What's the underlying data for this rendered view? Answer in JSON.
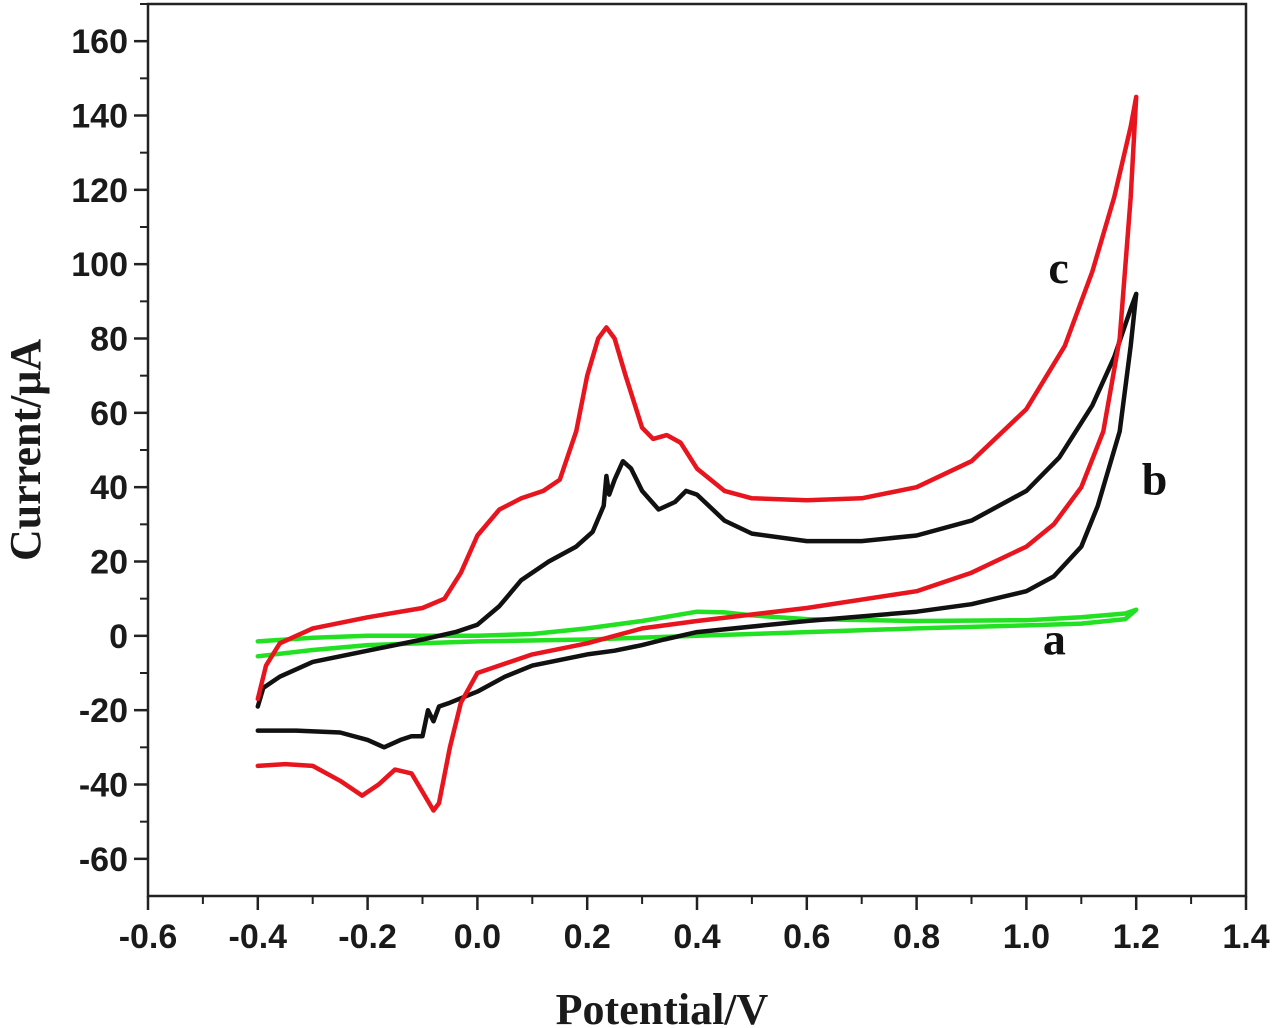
{
  "chart_data": {
    "type": "line",
    "xlabel": "Potential/V",
    "ylabel": "Current/μA",
    "xlim": [
      -0.6,
      1.4
    ],
    "ylim": [
      -70,
      170
    ],
    "xticks": [
      -0.6,
      -0.4,
      -0.2,
      0.0,
      0.2,
      0.4,
      0.6,
      0.8,
      1.0,
      1.2,
      1.4
    ],
    "xtick_labels": [
      "-0.6",
      "-0.4",
      "-0.2",
      "0.0",
      "0.2",
      "0.4",
      "0.6",
      "0.8",
      "1.0",
      "1.2",
      "1.4"
    ],
    "yticks": [
      -60,
      -40,
      -20,
      0,
      20,
      40,
      60,
      80,
      100,
      120,
      140,
      160
    ],
    "ytick_labels": [
      "-60",
      "-40",
      "-20",
      "0",
      "20",
      "40",
      "60",
      "80",
      "100",
      "120",
      "140",
      "160"
    ],
    "grid": false,
    "legend": "none",
    "series": [
      {
        "label": "a",
        "color": "#22e022",
        "label_pos": [
          1.03,
          -5
        ],
        "points": [
          [
            -0.4,
            -1.5
          ],
          [
            -0.3,
            -0.5
          ],
          [
            -0.2,
            0
          ],
          [
            -0.1,
            0
          ],
          [
            0.0,
            0
          ],
          [
            0.1,
            0.5
          ],
          [
            0.2,
            2
          ],
          [
            0.3,
            4
          ],
          [
            0.4,
            6.5
          ],
          [
            0.45,
            6.3
          ],
          [
            0.5,
            5.5
          ],
          [
            0.6,
            4.5
          ],
          [
            0.8,
            4
          ],
          [
            1.0,
            4.2
          ],
          [
            1.1,
            5
          ],
          [
            1.18,
            6
          ],
          [
            1.2,
            7
          ],
          [
            1.18,
            4.5
          ],
          [
            1.1,
            3.3
          ],
          [
            1.0,
            2.8
          ],
          [
            0.8,
            2
          ],
          [
            0.6,
            1
          ],
          [
            0.4,
            0
          ],
          [
            0.2,
            -1
          ],
          [
            0.0,
            -1.5
          ],
          [
            -0.2,
            -2.5
          ],
          [
            -0.3,
            -3.8
          ],
          [
            -0.4,
            -5.5
          ]
        ]
      },
      {
        "label": "b",
        "color": "#111111",
        "label_pos": [
          1.21,
          38
        ],
        "points": [
          [
            -0.4,
            -19
          ],
          [
            -0.39,
            -14
          ],
          [
            -0.36,
            -11
          ],
          [
            -0.3,
            -7
          ],
          [
            -0.2,
            -4
          ],
          [
            -0.1,
            -1
          ],
          [
            -0.04,
            1
          ],
          [
            0.0,
            3
          ],
          [
            0.04,
            8
          ],
          [
            0.08,
            15
          ],
          [
            0.13,
            20
          ],
          [
            0.18,
            24
          ],
          [
            0.21,
            28
          ],
          [
            0.23,
            35
          ],
          [
            0.235,
            43
          ],
          [
            0.24,
            38
          ],
          [
            0.25,
            42
          ],
          [
            0.265,
            47
          ],
          [
            0.28,
            45
          ],
          [
            0.3,
            39
          ],
          [
            0.33,
            34
          ],
          [
            0.36,
            36
          ],
          [
            0.38,
            39
          ],
          [
            0.4,
            38
          ],
          [
            0.45,
            31
          ],
          [
            0.5,
            27.5
          ],
          [
            0.6,
            25.5
          ],
          [
            0.7,
            25.5
          ],
          [
            0.8,
            27
          ],
          [
            0.9,
            31
          ],
          [
            1.0,
            39
          ],
          [
            1.06,
            48
          ],
          [
            1.12,
            62
          ],
          [
            1.16,
            75
          ],
          [
            1.19,
            88
          ],
          [
            1.2,
            92
          ],
          [
            1.19,
            78
          ],
          [
            1.17,
            55
          ],
          [
            1.13,
            35
          ],
          [
            1.1,
            24
          ],
          [
            1.05,
            16
          ],
          [
            1.0,
            12
          ],
          [
            0.9,
            8.5
          ],
          [
            0.8,
            6.5
          ],
          [
            0.6,
            4
          ],
          [
            0.4,
            1
          ],
          [
            0.34,
            -1
          ],
          [
            0.3,
            -2.5
          ],
          [
            0.25,
            -4
          ],
          [
            0.2,
            -5
          ],
          [
            0.1,
            -8
          ],
          [
            0.05,
            -11
          ],
          [
            0.0,
            -15
          ],
          [
            -0.05,
            -18
          ],
          [
            -0.07,
            -19
          ],
          [
            -0.08,
            -23
          ],
          [
            -0.09,
            -20
          ],
          [
            -0.1,
            -27
          ],
          [
            -0.12,
            -27
          ],
          [
            -0.14,
            -28
          ],
          [
            -0.17,
            -30
          ],
          [
            -0.2,
            -28
          ],
          [
            -0.25,
            -26
          ],
          [
            -0.33,
            -25.5
          ],
          [
            -0.4,
            -25.5
          ]
        ]
      },
      {
        "label": "c",
        "color": "#e8141e",
        "label_pos": [
          1.04,
          95
        ],
        "points": [
          [
            -0.4,
            -17
          ],
          [
            -0.385,
            -8
          ],
          [
            -0.36,
            -2
          ],
          [
            -0.3,
            2
          ],
          [
            -0.2,
            5
          ],
          [
            -0.1,
            7.5
          ],
          [
            -0.06,
            10
          ],
          [
            -0.03,
            17
          ],
          [
            0.0,
            27
          ],
          [
            0.04,
            34
          ],
          [
            0.08,
            37
          ],
          [
            0.12,
            39
          ],
          [
            0.15,
            42
          ],
          [
            0.18,
            55
          ],
          [
            0.2,
            70
          ],
          [
            0.22,
            80
          ],
          [
            0.235,
            83
          ],
          [
            0.25,
            80
          ],
          [
            0.27,
            70
          ],
          [
            0.3,
            56
          ],
          [
            0.32,
            53
          ],
          [
            0.345,
            54
          ],
          [
            0.37,
            52
          ],
          [
            0.4,
            45
          ],
          [
            0.45,
            39
          ],
          [
            0.5,
            37
          ],
          [
            0.6,
            36.5
          ],
          [
            0.7,
            37
          ],
          [
            0.8,
            40
          ],
          [
            0.9,
            47
          ],
          [
            1.0,
            61
          ],
          [
            1.07,
            78
          ],
          [
            1.12,
            98
          ],
          [
            1.16,
            118
          ],
          [
            1.19,
            137
          ],
          [
            1.2,
            145
          ],
          [
            1.19,
            118
          ],
          [
            1.17,
            80
          ],
          [
            1.14,
            55
          ],
          [
            1.1,
            40
          ],
          [
            1.05,
            30
          ],
          [
            1.0,
            24
          ],
          [
            0.9,
            17
          ],
          [
            0.8,
            12
          ],
          [
            0.6,
            7.5
          ],
          [
            0.4,
            4
          ],
          [
            0.3,
            2
          ],
          [
            0.2,
            -2
          ],
          [
            0.1,
            -5
          ],
          [
            0.0,
            -10
          ],
          [
            -0.03,
            -18
          ],
          [
            -0.05,
            -30
          ],
          [
            -0.07,
            -45
          ],
          [
            -0.08,
            -47
          ],
          [
            -0.1,
            -42
          ],
          [
            -0.12,
            -37
          ],
          [
            -0.15,
            -36
          ],
          [
            -0.18,
            -40
          ],
          [
            -0.21,
            -43
          ],
          [
            -0.25,
            -39
          ],
          [
            -0.3,
            -35
          ],
          [
            -0.35,
            -34.5
          ],
          [
            -0.4,
            -35
          ]
        ]
      }
    ]
  }
}
